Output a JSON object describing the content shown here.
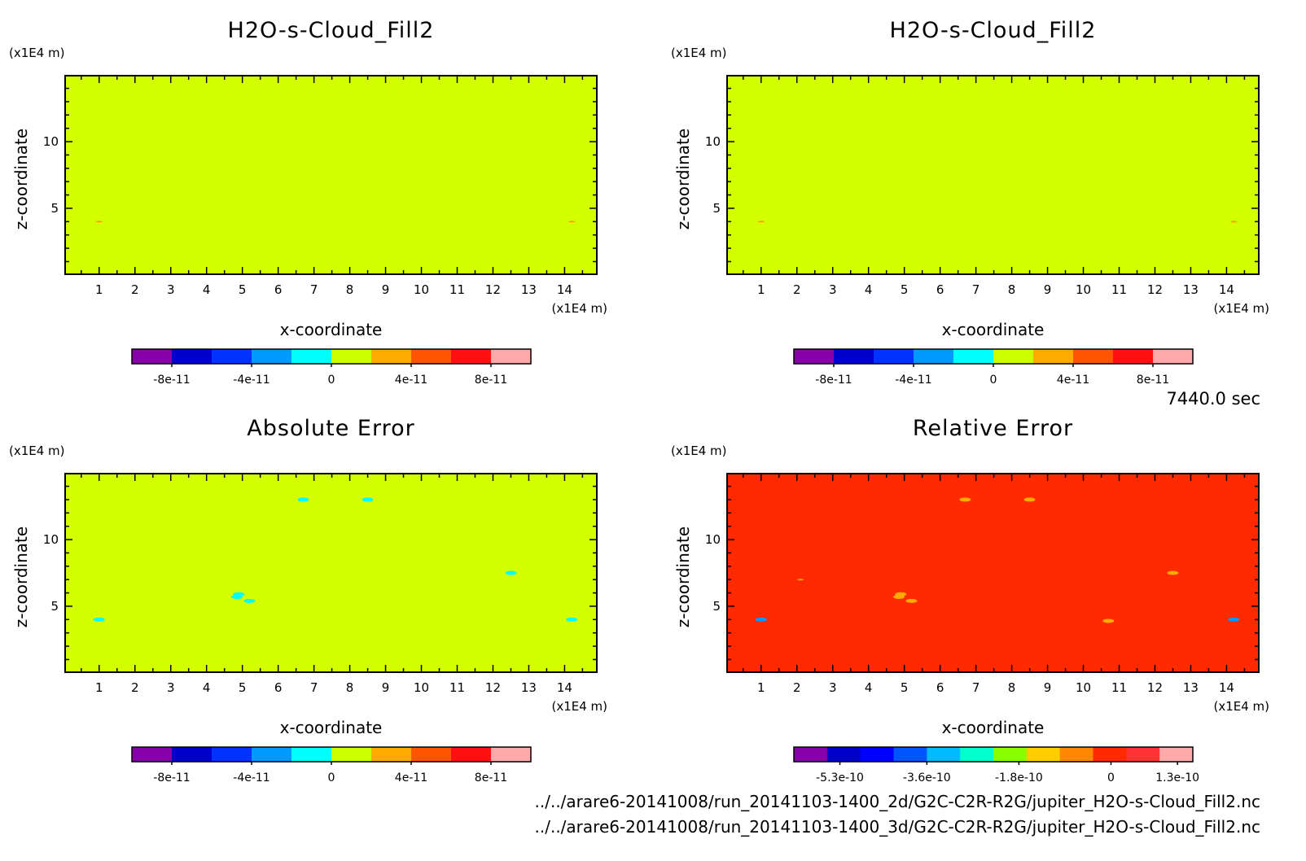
{
  "time_label": "7440.0 sec",
  "files": [
    "../../arare6-20141008/run_20141103-1400_2d/G2C-C2R-R2G/jupiter_H2O-s-Cloud_Fill2.nc",
    "../../arare6-20141008/run_20141103-1400_3d/G2C-C2R-R2G/jupiter_H2O-s-Cloud_Fill2.nc"
  ],
  "chart_data": [
    {
      "type": "heatmap",
      "title": "H2O-s-Cloud_Fill2",
      "xlabel": "x-coordinate",
      "ylabel": "z-coordinate",
      "x_unit": "(x1E4 m)",
      "y_unit": "(x1E4 m)",
      "xlim": [
        0.05,
        14.9
      ],
      "ylim": [
        0.05,
        14.95
      ],
      "xticks": [
        "1",
        "2",
        "3",
        "4",
        "5",
        "6",
        "7",
        "8",
        "9",
        "10",
        "11",
        "12",
        "13",
        "14"
      ],
      "yticks": [
        "5",
        "10"
      ],
      "field_color": "#d4ff00",
      "features": [
        {
          "x": 1.0,
          "y": 4.0,
          "color": "#ff9900",
          "size": "tiny"
        },
        {
          "x": 14.2,
          "y": 4.0,
          "color": "#ff9900",
          "size": "tiny"
        }
      ],
      "colorbar": {
        "colors": [
          "#8800aa",
          "#0000cc",
          "#0033ff",
          "#0099ff",
          "#00ffff",
          "#ccff00",
          "#ffaa00",
          "#ff5500",
          "#ff1111",
          "#ffaaaa"
        ],
        "tick_labels": [
          "-8e-11",
          "-4e-11",
          "0",
          "4e-11",
          "8e-11"
        ],
        "tick_values": [
          -8e-11,
          -4e-11,
          0,
          4e-11,
          8e-11
        ],
        "range": [
          -1e-10,
          1e-10
        ]
      }
    },
    {
      "type": "heatmap",
      "title": "H2O-s-Cloud_Fill2",
      "xlabel": "x-coordinate",
      "ylabel": "z-coordinate",
      "x_unit": "(x1E4 m)",
      "y_unit": "(x1E4 m)",
      "xlim": [
        0.05,
        14.9
      ],
      "ylim": [
        0.05,
        14.95
      ],
      "xticks": [
        "1",
        "2",
        "3",
        "4",
        "5",
        "6",
        "7",
        "8",
        "9",
        "10",
        "11",
        "12",
        "13",
        "14"
      ],
      "yticks": [
        "5",
        "10"
      ],
      "field_color": "#d4ff00",
      "features": [
        {
          "x": 1.0,
          "y": 4.0,
          "color": "#ff9900",
          "size": "tiny"
        },
        {
          "x": 14.2,
          "y": 4.0,
          "color": "#ff9900",
          "size": "tiny"
        }
      ],
      "colorbar": {
        "colors": [
          "#8800aa",
          "#0000cc",
          "#0033ff",
          "#0099ff",
          "#00ffff",
          "#ccff00",
          "#ffaa00",
          "#ff5500",
          "#ff1111",
          "#ffaaaa"
        ],
        "tick_labels": [
          "-8e-11",
          "-4e-11",
          "0",
          "4e-11",
          "8e-11"
        ],
        "tick_values": [
          -8e-11,
          -4e-11,
          0,
          4e-11,
          8e-11
        ],
        "range": [
          -1e-10,
          1e-10
        ]
      }
    },
    {
      "type": "heatmap",
      "title": "Absolute Error",
      "xlabel": "x-coordinate",
      "ylabel": "z-coordinate",
      "x_unit": "(x1E4 m)",
      "y_unit": "(x1E4 m)",
      "xlim": [
        0.05,
        14.9
      ],
      "ylim": [
        0.05,
        14.95
      ],
      "xticks": [
        "1",
        "2",
        "3",
        "4",
        "5",
        "6",
        "7",
        "8",
        "9",
        "10",
        "11",
        "12",
        "13",
        "14"
      ],
      "yticks": [
        "5",
        "10"
      ],
      "field_color": "#d4ff00",
      "features": [
        {
          "x": 6.7,
          "y": 13.0,
          "color": "#00ffff",
          "size": "small"
        },
        {
          "x": 8.5,
          "y": 13.0,
          "color": "#00ffff",
          "size": "small"
        },
        {
          "x": 12.5,
          "y": 7.5,
          "color": "#00ffff",
          "size": "small"
        },
        {
          "x": 4.9,
          "y": 5.9,
          "color": "#00ffff",
          "size": "small"
        },
        {
          "x": 4.85,
          "y": 5.7,
          "color": "#00ffff",
          "size": "small"
        },
        {
          "x": 5.2,
          "y": 5.4,
          "color": "#00ffff",
          "size": "small"
        },
        {
          "x": 1.0,
          "y": 4.0,
          "color": "#00ffff",
          "size": "small"
        },
        {
          "x": 14.2,
          "y": 4.0,
          "color": "#00ffff",
          "size": "small"
        }
      ],
      "colorbar": {
        "colors": [
          "#8800aa",
          "#0000cc",
          "#0033ff",
          "#0099ff",
          "#00ffff",
          "#ccff00",
          "#ffaa00",
          "#ff5500",
          "#ff1111",
          "#ffaaaa"
        ],
        "tick_labels": [
          "-8e-11",
          "-4e-11",
          "0",
          "4e-11",
          "8e-11"
        ],
        "tick_values": [
          -8e-11,
          -4e-11,
          0,
          4e-11,
          8e-11
        ],
        "range": [
          -1e-10,
          1e-10
        ]
      }
    },
    {
      "type": "heatmap",
      "title": "Relative Error",
      "xlabel": "x-coordinate",
      "ylabel": "z-coordinate",
      "x_unit": "(x1E4 m)",
      "y_unit": "(x1E4 m)",
      "xlim": [
        0.05,
        14.9
      ],
      "ylim": [
        0.05,
        14.95
      ],
      "xticks": [
        "1",
        "2",
        "3",
        "4",
        "5",
        "6",
        "7",
        "8",
        "9",
        "10",
        "11",
        "12",
        "13",
        "14"
      ],
      "yticks": [
        "5",
        "10"
      ],
      "field_color": "#ff2a00",
      "features": [
        {
          "x": 6.7,
          "y": 13.0,
          "color": "#ffaa00",
          "size": "small"
        },
        {
          "x": 8.5,
          "y": 13.0,
          "color": "#ffaa00",
          "size": "small"
        },
        {
          "x": 12.5,
          "y": 7.5,
          "color": "#ffaa00",
          "size": "small"
        },
        {
          "x": 2.1,
          "y": 7.0,
          "color": "#ffaa00",
          "size": "tiny"
        },
        {
          "x": 4.9,
          "y": 5.9,
          "color": "#ffaa00",
          "size": "small"
        },
        {
          "x": 4.85,
          "y": 5.7,
          "color": "#ffaa00",
          "size": "small"
        },
        {
          "x": 5.2,
          "y": 5.4,
          "color": "#ffaa00",
          "size": "small"
        },
        {
          "x": 10.7,
          "y": 3.9,
          "color": "#ffaa00",
          "size": "small"
        },
        {
          "x": 1.0,
          "y": 4.0,
          "color": "#0099ff",
          "size": "small"
        },
        {
          "x": 14.2,
          "y": 4.0,
          "color": "#0099ff",
          "size": "small"
        }
      ],
      "colorbar": {
        "colors": [
          "#8800aa",
          "#0000cc",
          "#0000ff",
          "#0055ff",
          "#00bbff",
          "#00ffcc",
          "#88ff00",
          "#ffcc00",
          "#ff8800",
          "#ff2a00",
          "#ff3333",
          "#ffaaaa"
        ],
        "tick_labels": [
          "-5.3e-10",
          "-3.6e-10",
          "-1.8e-10",
          "0",
          "1.3e-10"
        ],
        "tick_values": [
          -5.3e-10,
          -3.6e-10,
          -1.8e-10,
          0,
          1.3e-10
        ],
        "range": [
          -6.2e-10,
          1.6e-10
        ]
      }
    }
  ]
}
